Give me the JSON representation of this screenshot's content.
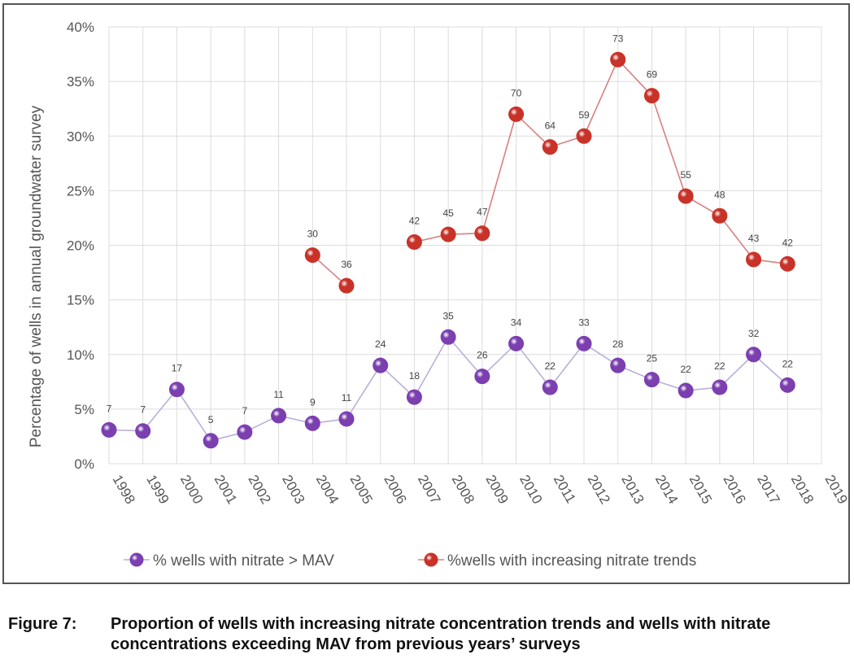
{
  "chart_data": {
    "type": "line",
    "ylabel": "Percentage of wells in annual groundwater survey",
    "xlabel": "",
    "ylim": [
      0,
      40
    ],
    "yticks": [
      0,
      5,
      10,
      15,
      20,
      25,
      30,
      35,
      40
    ],
    "ytick_labels": [
      "0%",
      "5%",
      "10%",
      "15%",
      "20%",
      "25%",
      "30%",
      "35%",
      "40%"
    ],
    "categories": [
      "1998",
      "1999",
      "2000",
      "2001",
      "2002",
      "2003",
      "2004",
      "2005",
      "2006",
      "2007",
      "2008",
      "2009",
      "2010",
      "2011",
      "2012",
      "2013",
      "2014",
      "2015",
      "2016",
      "2017",
      "2018",
      "2019"
    ],
    "grid": true,
    "legend_position": "bottom",
    "series": [
      {
        "name": "% wells with nitrate > MAV",
        "color": "#7b3fb0",
        "line_color": "#b9b0d8",
        "values": [
          3.1,
          3.0,
          6.8,
          2.1,
          2.9,
          4.4,
          3.7,
          4.1,
          9.0,
          6.1,
          11.6,
          8.0,
          11.0,
          7.0,
          11.0,
          9.0,
          7.7,
          6.7,
          7.0,
          10.0,
          7.2,
          null
        ],
        "labels": [
          "7",
          "7",
          "17",
          "5",
          "7",
          "11",
          "9",
          "11",
          "24",
          "18",
          "35",
          "26",
          "34",
          "22",
          "33",
          "28",
          "25",
          "22",
          "22",
          "32",
          "22",
          ""
        ]
      },
      {
        "name": "%wells with increasing nitrate trends",
        "color": "#c83228",
        "line_color": "#d88080",
        "values": [
          null,
          null,
          null,
          null,
          null,
          null,
          19.1,
          16.3,
          null,
          20.3,
          21.0,
          21.1,
          32.0,
          29.0,
          30.0,
          37.0,
          33.7,
          24.5,
          22.7,
          18.7,
          18.3,
          null
        ],
        "labels": [
          "",
          "",
          "",
          "",
          "",
          "",
          "30",
          "36",
          "",
          "42",
          "45",
          "47",
          "70",
          "64",
          "59",
          "73",
          "69",
          "55",
          "48",
          "43",
          "42",
          ""
        ]
      }
    ]
  },
  "caption": {
    "label": "Figure 7:",
    "text": "Proportion of wells with increasing nitrate concentration trends and wells with nitrate concentrations exceeding MAV from previous years’ surveys"
  }
}
